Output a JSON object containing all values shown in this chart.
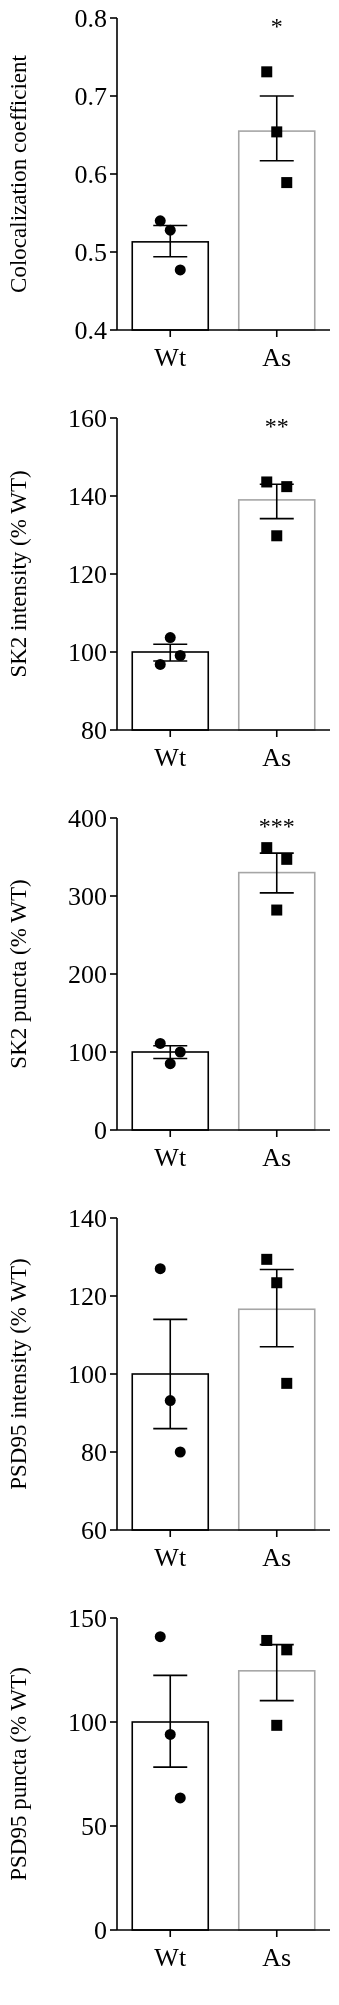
{
  "chart_data": [
    {
      "type": "bar",
      "categories": [
        "Wt",
        "As"
      ],
      "ylabel": "Colocalization coefficient",
      "ylim": [
        0.4,
        0.8
      ],
      "yticks": [
        0.4,
        0.5,
        0.6,
        0.7,
        0.8
      ],
      "annotations": [
        "*"
      ],
      "series": [
        {
          "values": [
            0.513,
            0.655
          ],
          "colors": [
            "#000000",
            "#a6a6a6"
          ],
          "errors": [
            [
              0.494,
              0.534
            ],
            [
              0.617,
              0.7
            ]
          ]
        },
        {
          "type": "scatter",
          "marker": "circle",
          "color": "#000000",
          "x": [
            "Wt",
            "Wt",
            "Wt"
          ],
          "values": [
            0.54,
            0.528,
            0.477
          ]
        },
        {
          "type": "scatter",
          "marker": "square",
          "color": "#000000",
          "x": [
            "As",
            "As",
            "As"
          ],
          "values": [
            0.731,
            0.654,
            0.589
          ]
        }
      ]
    },
    {
      "type": "bar",
      "categories": [
        "Wt",
        "As"
      ],
      "ylabel": "SK2 intensity (% WT)",
      "ylim": [
        80,
        160
      ],
      "yticks": [
        80,
        100,
        120,
        140,
        160
      ],
      "annotations": [
        "**"
      ],
      "series": [
        {
          "values": [
            100,
            139
          ],
          "colors": [
            "#000000",
            "#a6a6a6"
          ],
          "errors": [
            [
              97.7,
              102
            ],
            [
              134.2,
              143
            ]
          ]
        },
        {
          "type": "scatter",
          "marker": "circle",
          "color": "#000000",
          "x": [
            "Wt",
            "Wt",
            "Wt"
          ],
          "values": [
            96.8,
            103.7,
            99.1
          ]
        },
        {
          "type": "scatter",
          "marker": "square",
          "color": "#000000",
          "x": [
            "As",
            "As",
            "As"
          ],
          "values": [
            143.6,
            129.8,
            142.4
          ]
        }
      ]
    },
    {
      "type": "bar",
      "categories": [
        "Wt",
        "As"
      ],
      "ylabel": "SK2 puncta (% WT)",
      "ylim": [
        0,
        400
      ],
      "yticks": [
        0,
        100,
        200,
        300,
        400
      ],
      "annotations": [
        "***"
      ],
      "series": [
        {
          "values": [
            100,
            330
          ],
          "colors": [
            "#000000",
            "#a6a6a6"
          ],
          "errors": [
            [
              91.7,
              108
            ],
            [
              304,
              355
            ]
          ]
        },
        {
          "type": "scatter",
          "marker": "circle",
          "color": "#000000",
          "x": [
            "Wt",
            "Wt",
            "Wt"
          ],
          "values": [
            111,
            85,
            100
          ]
        },
        {
          "type": "scatter",
          "marker": "square",
          "color": "#000000",
          "x": [
            "As",
            "As",
            "As"
          ],
          "values": [
            362,
            282,
            347
          ]
        }
      ]
    },
    {
      "type": "bar",
      "categories": [
        "Wt",
        "As"
      ],
      "ylabel": "PSD95 intensity (% WT)",
      "ylim": [
        60,
        140
      ],
      "yticks": [
        60,
        80,
        100,
        120,
        140
      ],
      "series": [
        {
          "values": [
            100,
            116.6
          ],
          "colors": [
            "#000000",
            "#a6a6a6"
          ],
          "errors": [
            [
              86,
              114
            ],
            [
              107,
              126.8
            ]
          ]
        },
        {
          "type": "scatter",
          "marker": "circle",
          "color": "#000000",
          "x": [
            "Wt",
            "Wt",
            "Wt"
          ],
          "values": [
            127,
            93.2,
            80
          ]
        },
        {
          "type": "scatter",
          "marker": "square",
          "color": "#000000",
          "x": [
            "As",
            "As",
            "As"
          ],
          "values": [
            129.4,
            123.4,
            97.6
          ]
        }
      ]
    },
    {
      "type": "bar",
      "categories": [
        "Wt",
        "As"
      ],
      "ylabel": "PSD95 puncta (% WT)",
      "ylim": [
        0,
        150
      ],
      "yticks": [
        0,
        50,
        100,
        150
      ],
      "series": [
        {
          "values": [
            100,
            124.6
          ],
          "colors": [
            "#000000",
            "#a6a6a6"
          ],
          "errors": [
            [
              78.3,
              122.4
            ],
            [
              110.3,
              137.2
            ]
          ]
        },
        {
          "type": "scatter",
          "marker": "circle",
          "color": "#000000",
          "x": [
            "Wt",
            "Wt",
            "Wt"
          ],
          "values": [
            141,
            94,
            63.5
          ]
        },
        {
          "type": "scatter",
          "marker": "square",
          "color": "#000000",
          "x": [
            "As",
            "As",
            "As"
          ],
          "values": [
            139.2,
            98.4,
            134.7
          ]
        }
      ]
    }
  ]
}
